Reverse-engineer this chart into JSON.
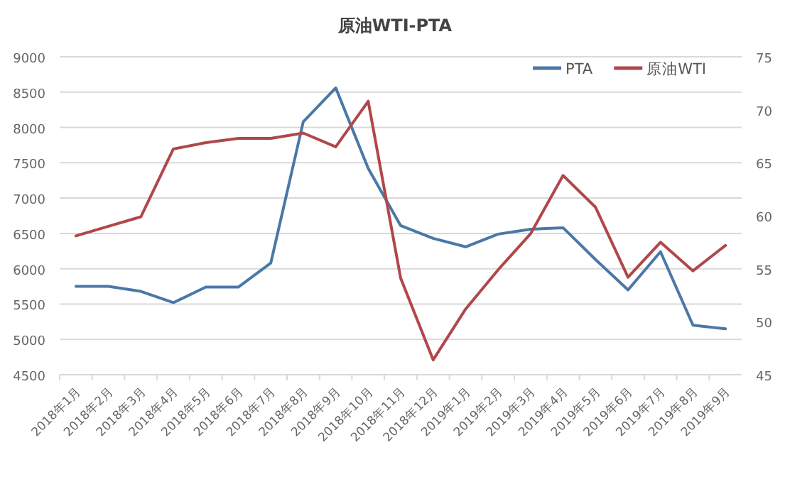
{
  "chart_data": {
    "type": "line",
    "title": "原油WTI-PTA",
    "categories": [
      "2018年1月",
      "2018年2月",
      "2018年3月",
      "2018年4月",
      "2018年5月",
      "2018年6月",
      "2018年7月",
      "2018年8月",
      "2018年9月",
      "2018年10月",
      "2018年11月",
      "2018年12月",
      "2019年1月",
      "2019年2月",
      "2019年3月",
      "2019年4月",
      "2019年5月",
      "2019年6月",
      "2019年7月",
      "2019年8月",
      "2019年9月"
    ],
    "series": [
      {
        "name": "PTA",
        "color": "#4a78a8",
        "values": [
          5750,
          5750,
          5680,
          5520,
          5740,
          5740,
          6080,
          8080,
          8560,
          7420,
          6610,
          6430,
          6310,
          6490,
          6560,
          6580,
          6130,
          5700,
          6240,
          5200,
          5150
        ]
      },
      {
        "name": "原油WTI",
        "color": "#b0474a",
        "axis": "y2",
        "values": [
          58.1,
          59.0,
          59.9,
          66.3,
          66.9,
          67.3,
          67.3,
          67.8,
          66.5,
          70.8,
          54.1,
          46.4,
          51.2,
          54.9,
          58.3,
          63.8,
          60.8,
          54.2,
          57.5,
          54.8,
          57.2
        ]
      }
    ],
    "ylim": [
      4500,
      9000
    ],
    "yticks": [
      4500,
      5000,
      5500,
      6000,
      6500,
      7000,
      7500,
      8000,
      8500,
      9000
    ],
    "y2lim": [
      45,
      75
    ],
    "y2ticks": [
      45,
      50,
      55,
      60,
      65,
      70,
      75
    ],
    "grid": "y",
    "legend": "top right",
    "marker": "none",
    "line_style": "solid"
  }
}
